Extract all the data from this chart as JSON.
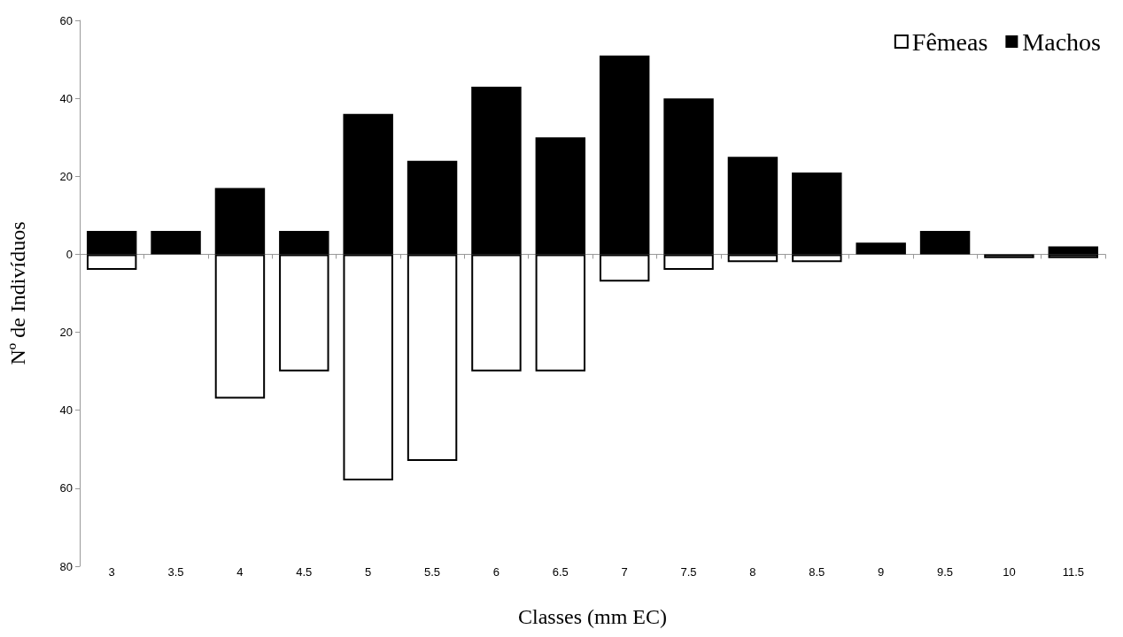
{
  "chart_data": {
    "type": "bar",
    "stacked": true,
    "xlabel": "Classes (mm EC)",
    "ylabel": "Nº de Indivíduos",
    "categories": [
      "3",
      "3.5",
      "4",
      "4.5",
      "5",
      "5.5",
      "6",
      "6.5",
      "7",
      "7.5",
      "8",
      "8.5",
      "9",
      "9.5",
      "10",
      "11.5"
    ],
    "series": [
      {
        "name": "Fêmeas",
        "color": "#ffffff",
        "values": [
          -4,
          null,
          -37,
          -30,
          -58,
          -53,
          -30,
          -30,
          -7,
          -4,
          -2,
          -2,
          null,
          null,
          -1,
          -1
        ]
      },
      {
        "name": "Machos",
        "color": "#000000",
        "values": [
          6,
          6,
          17,
          6,
          36,
          24,
          43,
          30,
          51,
          40,
          25,
          21,
          3,
          6,
          null,
          2
        ]
      }
    ],
    "ylim": [
      -80,
      60
    ],
    "yticks": [
      {
        "value": -80,
        "label": "80"
      },
      {
        "value": -60,
        "label": "60"
      },
      {
        "value": -40,
        "label": "40"
      },
      {
        "value": -20,
        "label": "20"
      },
      0,
      20,
      40,
      60
    ],
    "legend": "top right"
  }
}
